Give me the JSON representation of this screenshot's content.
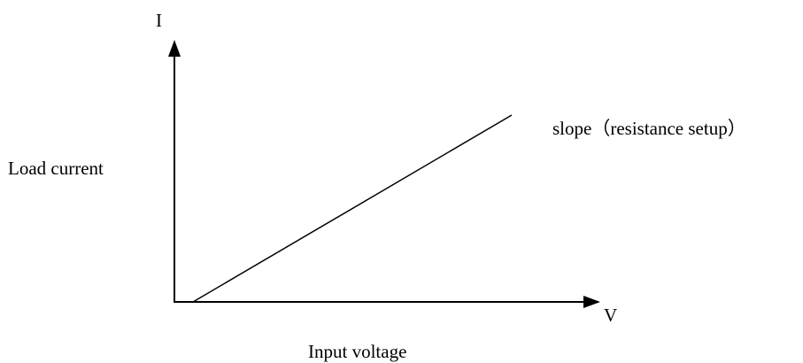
{
  "axes": {
    "y_label": "I",
    "x_label": "V",
    "y_title": "Load current",
    "x_title": "Input voltage"
  },
  "line": {
    "label": "slope（resistance setup）"
  }
}
